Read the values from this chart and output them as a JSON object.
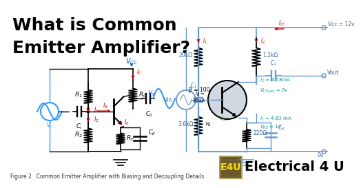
{
  "bg_color": "#ffffff",
  "title_line1": "What is Common",
  "title_line2": "Emitter Amplifier?",
  "title_color": "#000000",
  "title_fontsize": 18,
  "figure_caption": "Figure 2   Common Emitter Amplifier with Biasing and Decoupling Details",
  "caption_fontsize": 5.5,
  "brand_text": "Electrical 4 U",
  "brand_fontsize": 14,
  "brand_color": "#000000",
  "e4u_bg": "#6b5a2a",
  "e4u_text": "E4U",
  "e4u_text_color": "#FFD700",
  "vcc_color": "#0055cc",
  "ic_color": "#cc0000",
  "ie_color": "#cc0000",
  "ib_color": "#cc0000",
  "i1_color": "#cc0000",
  "i2_color": "#cc0000",
  "wire_color": "#000000",
  "sine_color": "#3399ff",
  "right_wire_color": "#6699cc",
  "right_text_color": "#336699",
  "cyan_color": "#009999"
}
